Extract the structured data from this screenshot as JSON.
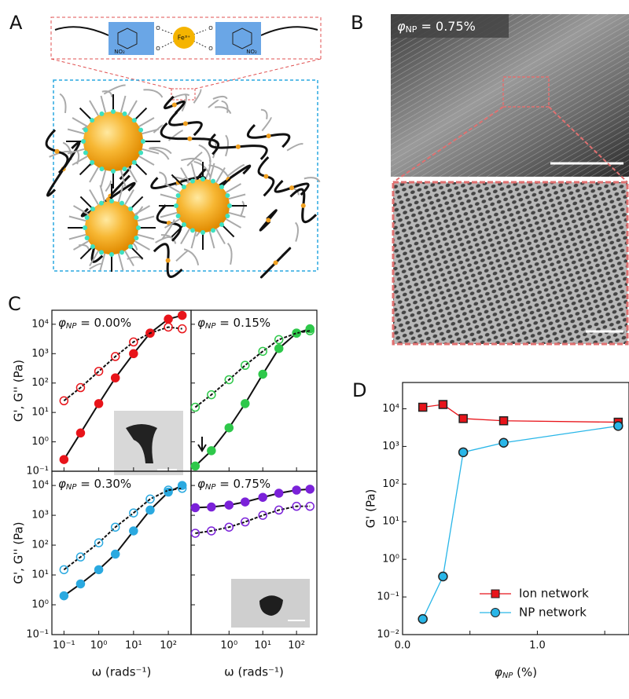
{
  "panels": [
    "A",
    "B",
    "C",
    "D"
  ],
  "schematic": {
    "fe": "Fe³⁺",
    "groups": [
      "O",
      "O",
      "O",
      "O",
      "NO₂",
      "NO₂"
    ]
  },
  "sem": {
    "label": {
      "symbol": "φ",
      "sub": "NP",
      "text": " = 0.75%"
    }
  },
  "chart_data": [
    {
      "type": "line",
      "xscale": "log",
      "yscale": "log",
      "annotation": {
        "symbol": "φ",
        "sub": "NP",
        "text": " = 0.00%"
      },
      "y_label": "G', G'' (Pa)",
      "x": [
        0.1,
        0.3,
        1,
        3,
        10,
        30,
        100,
        250
      ],
      "series": [
        {
          "color": "#e8141a",
          "filled": true,
          "values": [
            0.25,
            2,
            20,
            150,
            1000,
            5000,
            15000,
            20000
          ]
        },
        {
          "color": "#e8141a",
          "filled": false,
          "values": [
            25,
            70,
            250,
            800,
            2500,
            5000,
            8000,
            7000
          ]
        }
      ],
      "xlim": [
        0.045,
        450
      ],
      "ylim": [
        0.1,
        30000
      ],
      "xticks": [
        0.1,
        1,
        10,
        100
      ],
      "yticks": [
        {
          "value": 0.1,
          "label": "10⁻¹"
        },
        {
          "value": 1,
          "label": "10⁰"
        },
        {
          "value": 10,
          "label": "10¹"
        },
        {
          "value": 100,
          "label": "10²"
        },
        {
          "value": 1000,
          "label": "10³"
        },
        {
          "value": 10000,
          "label": "10⁴"
        }
      ]
    },
    {
      "type": "line",
      "xscale": "log",
      "yscale": "log",
      "annotation": {
        "symbol": "φ",
        "sub": "NP",
        "text": " = 0.15%"
      },
      "x": [
        0.1,
        0.3,
        1,
        3,
        10,
        30,
        100,
        250
      ],
      "series": [
        {
          "color": "#2ec84a",
          "filled": true,
          "values": [
            0.15,
            0.5,
            3,
            20,
            200,
            1500,
            5000,
            7000
          ]
        },
        {
          "color": "#2ec84a",
          "filled": false,
          "values": [
            15,
            40,
            130,
            400,
            1200,
            3000,
            5000,
            6000
          ]
        }
      ],
      "xlim": [
        0.075,
        400
      ],
      "ylim": [
        0.1,
        30000
      ],
      "xticks": [
        1,
        10,
        100
      ],
      "yticks": [
        0.1,
        1,
        10,
        100,
        1000,
        10000
      ]
    },
    {
      "type": "line",
      "xscale": "log",
      "yscale": "log",
      "annotation": {
        "symbol": "φ",
        "sub": "NP",
        "text": " = 0.30%"
      },
      "y_label": "G', G'' (Pa)",
      "x_label": "ω (rads⁻¹)",
      "x": [
        0.1,
        0.3,
        1,
        3,
        10,
        30,
        100,
        250
      ],
      "series": [
        {
          "color": "#2aa9e0",
          "filled": true,
          "values": [
            2,
            5,
            15,
            50,
            300,
            1500,
            6000,
            10000
          ]
        },
        {
          "color": "#2aa9e0",
          "filled": false,
          "values": [
            15,
            40,
            120,
            400,
            1200,
            3500,
            7000,
            8000
          ]
        }
      ],
      "xlim": [
        0.045,
        450
      ],
      "ylim": [
        0.1,
        30000
      ],
      "xticks": [
        {
          "value": 0.1,
          "label": "10⁻¹"
        },
        {
          "value": 1,
          "label": "10⁰"
        },
        {
          "value": 10,
          "label": "10¹"
        },
        {
          "value": 100,
          "label": "10²"
        }
      ],
      "yticks": [
        {
          "value": 0.1,
          "label": "10⁻¹"
        },
        {
          "value": 1,
          "label": "10⁰"
        },
        {
          "value": 10,
          "label": "10¹"
        },
        {
          "value": 100,
          "label": "10²"
        },
        {
          "value": 1000,
          "label": "10³"
        },
        {
          "value": 10000,
          "label": "10⁴"
        }
      ]
    },
    {
      "type": "line",
      "xscale": "log",
      "yscale": "log",
      "annotation": {
        "symbol": "φ",
        "sub": "NP",
        "text": " = 0.75%"
      },
      "x_label": "ω (rads⁻¹)",
      "x": [
        0.1,
        0.3,
        1,
        3,
        10,
        30,
        100,
        250
      ],
      "series": [
        {
          "color": "#7b22d9",
          "filled": true,
          "values": [
            1800,
            1900,
            2200,
            2800,
            4000,
            5500,
            7000,
            7500
          ]
        },
        {
          "color": "#7b22d9",
          "filled": false,
          "values": [
            250,
            300,
            400,
            600,
            1000,
            1500,
            2000,
            2000
          ]
        }
      ],
      "xlim": [
        0.075,
        400
      ],
      "ylim": [
        0.1,
        30000
      ],
      "xticks": [
        {
          "value": 1,
          "label": "10⁰"
        },
        {
          "value": 10,
          "label": "10¹"
        },
        {
          "value": 100,
          "label": "10²"
        }
      ],
      "yticks": [
        0.1,
        1,
        10,
        100,
        1000,
        10000
      ]
    },
    {
      "type": "line",
      "yscale": "log",
      "y_label": "G' (Pa)",
      "x_label": {
        "symbol": "φ",
        "sub": "NP",
        "text": " (%)"
      },
      "x": [
        0.15,
        0.3,
        0.45,
        0.75,
        1.6
      ],
      "series": [
        {
          "name": "Ion network",
          "color": "#e8141a",
          "marker": "square",
          "values": [
            11000,
            13000,
            5500,
            4800,
            4400
          ]
        },
        {
          "name": "NP network",
          "color": "#29b6e8",
          "marker": "circle",
          "values": [
            0.026,
            0.35,
            700,
            1250,
            3500
          ]
        }
      ],
      "xlim": [
        0,
        1.68
      ],
      "ylim": [
        0.01,
        50000
      ],
      "xticks": [
        {
          "value": 0,
          "label": "0.0"
        },
        0.5,
        {
          "value": 1,
          "label": "1.0"
        },
        1.5
      ],
      "yticks": [
        {
          "value": 0.01,
          "label": "10⁻²"
        },
        {
          "value": 0.1,
          "label": "10⁻¹"
        },
        {
          "value": 1,
          "label": "10⁰"
        },
        {
          "value": 10,
          "label": "10¹"
        },
        {
          "value": 100,
          "label": "10²"
        },
        {
          "value": 1000,
          "label": "10³"
        },
        {
          "value": 10000,
          "label": "10⁴"
        }
      ],
      "legend": "lower right"
    }
  ]
}
